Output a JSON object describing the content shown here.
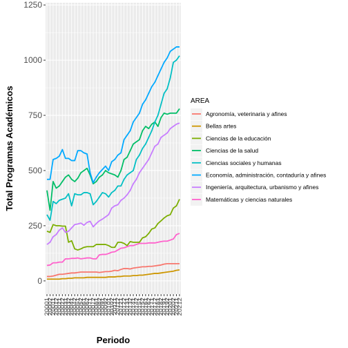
{
  "chart_data": {
    "type": "line",
    "title": "",
    "xlabel": "Periodo",
    "ylabel": "Total Programas Académicos",
    "ylim": [
      -60,
      1260
    ],
    "yticks": [
      0,
      250,
      500,
      750,
      1000,
      1250
    ],
    "x": [
      "20001",
      "20002",
      "20011",
      "20012",
      "20021",
      "20022",
      "20031",
      "20032",
      "20041",
      "20042",
      "20051",
      "20052",
      "20061",
      "20062",
      "20071",
      "20072",
      "20081",
      "20082",
      "20091",
      "20092",
      "20101",
      "20102",
      "20111",
      "20112",
      "20121",
      "20122",
      "20131",
      "20132",
      "20141",
      "20142",
      "20151",
      "20152",
      "20161",
      "20162",
      "20171",
      "20172",
      "20181",
      "20182",
      "20191",
      "20192",
      "20201",
      "20202",
      "20211",
      "20212"
    ],
    "legend": {
      "title": "AREA",
      "position": "right"
    },
    "grid": true,
    "series": [
      {
        "name": "Agronomía, veterinaria y afines",
        "color": "#F8766D",
        "values": [
          20,
          20,
          22,
          26,
          30,
          30,
          32,
          34,
          36,
          36,
          38,
          40,
          40,
          40,
          40,
          40,
          40,
          38,
          40,
          42,
          42,
          44,
          48,
          46,
          52,
          56,
          56,
          54,
          58,
          60,
          62,
          64,
          64,
          66,
          66,
          68,
          70,
          72,
          76,
          78,
          78,
          78,
          78,
          78
        ]
      },
      {
        "name": "Bellas artes",
        "color": "#CD9600",
        "values": [
          8,
          8,
          8,
          8,
          8,
          10,
          10,
          12,
          12,
          14,
          14,
          14,
          14,
          16,
          16,
          16,
          16,
          16,
          16,
          16,
          18,
          18,
          18,
          20,
          20,
          22,
          22,
          22,
          24,
          24,
          26,
          26,
          28,
          30,
          32,
          34,
          34,
          36,
          38,
          40,
          42,
          44,
          48,
          50
        ]
      },
      {
        "name": "Ciencias de la educación",
        "color": "#7CAE00",
        "values": [
          225,
          220,
          255,
          250,
          250,
          248,
          248,
          175,
          182,
          145,
          140,
          145,
          152,
          155,
          155,
          155,
          165,
          165,
          165,
          165,
          160,
          152,
          152,
          175,
          175,
          170,
          160,
          178,
          175,
          175,
          175,
          195,
          200,
          215,
          235,
          240,
          260,
          272,
          285,
          295,
          300,
          330,
          340,
          370
        ]
      },
      {
        "name": "Ciencias de la salud",
        "color": "#00BE67",
        "values": [
          410,
          320,
          450,
          420,
          430,
          450,
          470,
          480,
          460,
          450,
          465,
          490,
          500,
          510,
          480,
          440,
          450,
          470,
          480,
          500,
          490,
          485,
          480,
          470,
          500,
          550,
          560,
          590,
          620,
          630,
          640,
          680,
          700,
          690,
          710,
          720,
          700,
          740,
          760,
          755,
          760,
          760,
          760,
          780
        ]
      },
      {
        "name": "Ciencias sociales y humanas",
        "color": "#00BFC4",
        "values": [
          300,
          275,
          360,
          350,
          365,
          370,
          375,
          395,
          340,
          395,
          390,
          390,
          400,
          400,
          395,
          345,
          360,
          380,
          400,
          395,
          380,
          400,
          410,
          430,
          430,
          460,
          480,
          490,
          500,
          550,
          570,
          600,
          620,
          650,
          680,
          720,
          750,
          800,
          850,
          870,
          920,
          990,
          1000,
          1020
        ]
      },
      {
        "name": "Economía, administración, contaduría y afines",
        "color": "#00A9FF",
        "values": [
          460,
          460,
          550,
          555,
          565,
          595,
          555,
          555,
          545,
          545,
          590,
          590,
          580,
          575,
          490,
          445,
          470,
          490,
          505,
          520,
          500,
          540,
          550,
          570,
          580,
          640,
          660,
          680,
          720,
          740,
          760,
          800,
          820,
          850,
          880,
          900,
          930,
          960,
          990,
          1010,
          1040,
          1050,
          1060,
          1060
        ]
      },
      {
        "name": "Ingeniería, arquitectura, urbanismo y afines",
        "color": "#C77CFF",
        "values": [
          165,
          175,
          200,
          210,
          230,
          240,
          220,
          225,
          240,
          255,
          258,
          262,
          252,
          265,
          270,
          245,
          260,
          272,
          280,
          290,
          300,
          330,
          340,
          345,
          365,
          375,
          390,
          410,
          440,
          460,
          490,
          510,
          530,
          550,
          580,
          610,
          620,
          650,
          660,
          670,
          690,
          700,
          710,
          715
        ]
      },
      {
        "name": "Matemáticas y ciencias naturales",
        "color": "#FF61CC",
        "values": [
          70,
          72,
          82,
          82,
          85,
          85,
          100,
          100,
          102,
          102,
          104,
          100,
          102,
          104,
          104,
          100,
          100,
          118,
          120,
          120,
          124,
          130,
          132,
          140,
          148,
          150,
          155,
          160,
          160,
          165,
          170,
          170,
          170,
          172,
          172,
          172,
          175,
          178,
          180,
          180,
          185,
          190,
          210,
          215
        ]
      }
    ]
  }
}
